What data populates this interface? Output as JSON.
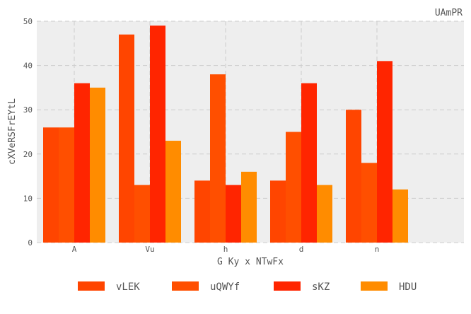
{
  "chart_data": {
    "type": "bar",
    "title": "UAmPR",
    "xlabel": "G Ky x  NTwFx",
    "ylabel": "cXVeRSFrEYtL",
    "categories": [
      "A",
      "Vu",
      "h",
      "d",
      "n"
    ],
    "ylim": [
      0,
      50
    ],
    "yticks": [
      0,
      10,
      20,
      30,
      40,
      50
    ],
    "grid": true,
    "legend_position": "bottom",
    "series": [
      {
        "name": "vLEK",
        "color": "#ff4500",
        "values": [
          26,
          47,
          14,
          14,
          30
        ]
      },
      {
        "name": "uQWYf",
        "color": "#ff4f00",
        "values": [
          26,
          13,
          38,
          25,
          18
        ]
      },
      {
        "name": "sKZ",
        "color": "#ff2500",
        "values": [
          36,
          49,
          13,
          36,
          41
        ]
      },
      {
        "name": "HDU",
        "color": "#ff8c00",
        "values": [
          35,
          23,
          16,
          13,
          12
        ]
      }
    ]
  }
}
